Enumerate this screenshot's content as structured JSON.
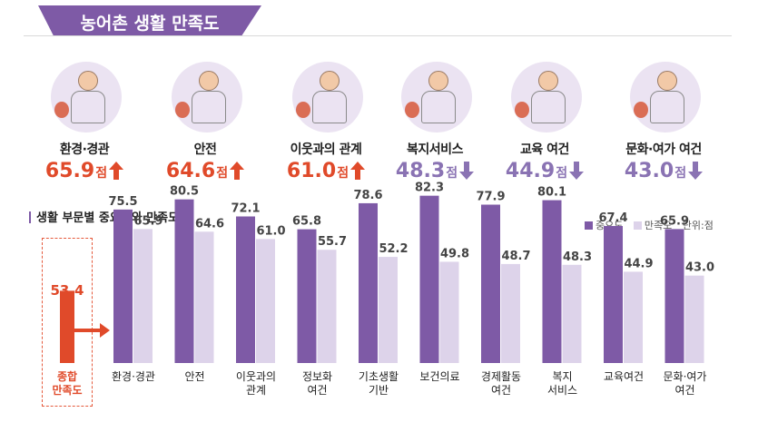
{
  "header": {
    "title": "농어촌 생활 만족도"
  },
  "cards": [
    {
      "label": "환경·경관",
      "value": "65.9",
      "unit": "점",
      "direction": "up",
      "color": "#e04a2a",
      "icon": "farmer-harvest-illustration"
    },
    {
      "label": "안전",
      "value": "64.6",
      "unit": "점",
      "direction": "up",
      "color": "#e04a2a",
      "icon": "police-officer-illustration"
    },
    {
      "label": "이웃과의 관계",
      "value": "61.0",
      "unit": "점",
      "direction": "up",
      "color": "#e04a2a",
      "icon": "neighbors-group-illustration"
    },
    {
      "label": "복지서비스",
      "value": "48.3",
      "unit": "점",
      "direction": "down",
      "color": "#8a73b3",
      "icon": "caregiver-elder-illustration"
    },
    {
      "label": "교육 여건",
      "value": "44.9",
      "unit": "점",
      "direction": "down",
      "color": "#8a73b3",
      "icon": "parent-child-illustration"
    },
    {
      "label": "문화·여가 여건",
      "value": "43.0",
      "unit": "점",
      "direction": "down",
      "color": "#8a73b3",
      "icon": "woman-clapperboard-illustration"
    }
  ],
  "section": {
    "title": "생활 부문별 중요도와 만족도"
  },
  "legend": {
    "importance": "중요도",
    "satisfaction": "만족도",
    "unit": "단위:점"
  },
  "overall": {
    "value": "53.4",
    "label_line1": "종합",
    "label_line2": "만족도"
  },
  "colors": {
    "importance": "#7e5aa6",
    "satisfaction": "#ddd3ea",
    "accent_red": "#e04a2a",
    "accent_purple": "#8a73b3"
  },
  "chart_data": {
    "type": "bar",
    "categories": [
      "환경·경관",
      "안전",
      "이웃과의 관계",
      "정보화 여건",
      "기초생활 기반",
      "보건의료",
      "경제활동 여건",
      "복지 서비스",
      "교육여건",
      "문화·여가 여건"
    ],
    "category_lines": [
      [
        "환경·경관"
      ],
      [
        "안전"
      ],
      [
        "이웃과의",
        "관계"
      ],
      [
        "정보화",
        "여건"
      ],
      [
        "기초생활",
        "기반"
      ],
      [
        "보건의료"
      ],
      [
        "경제활동",
        "여건"
      ],
      [
        "복지",
        "서비스"
      ],
      [
        "교육여건"
      ],
      [
        "문화·여가",
        "여건"
      ]
    ],
    "series": [
      {
        "name": "중요도",
        "values": [
          75.5,
          80.5,
          72.1,
          65.8,
          78.6,
          82.3,
          77.9,
          80.1,
          67.4,
          65.9
        ]
      },
      {
        "name": "만족도",
        "values": [
          65.9,
          64.6,
          61.0,
          55.7,
          52.2,
          49.8,
          48.7,
          48.3,
          44.9,
          43.0
        ]
      }
    ],
    "overall_satisfaction": 53.4,
    "ylim": [
      0,
      90
    ],
    "legend_position": "top-right",
    "grid": false
  }
}
